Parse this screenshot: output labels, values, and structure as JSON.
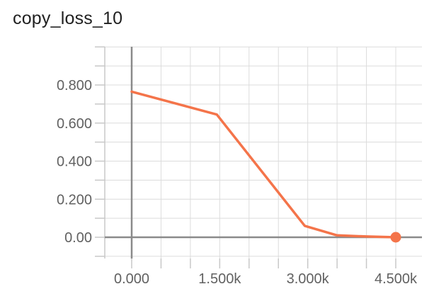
{
  "chart_data": {
    "type": "line",
    "title": "copy_loss_10",
    "xlabel": "",
    "ylabel": "",
    "x_tick_labels": [
      "0.000",
      "1.500k",
      "3.000k",
      "4.500k"
    ],
    "x_ticks": [
      0,
      1500,
      3000,
      4500
    ],
    "y_tick_labels": [
      "0.00",
      "0.200",
      "0.400",
      "0.600",
      "0.800"
    ],
    "y_ticks": [
      0,
      0.2,
      0.4,
      0.6,
      0.8
    ],
    "xlim": [
      -1500,
      5500
    ],
    "ylim": [
      -0.1,
      1.0
    ],
    "grid": true,
    "series": [
      {
        "color": "#f4744a",
        "x": [
          0,
          1450,
          2950,
          3500,
          4000,
          4500
        ],
        "values": [
          0.765,
          0.645,
          0.06,
          0.01,
          0.004,
          0.0
        ]
      }
    ]
  }
}
